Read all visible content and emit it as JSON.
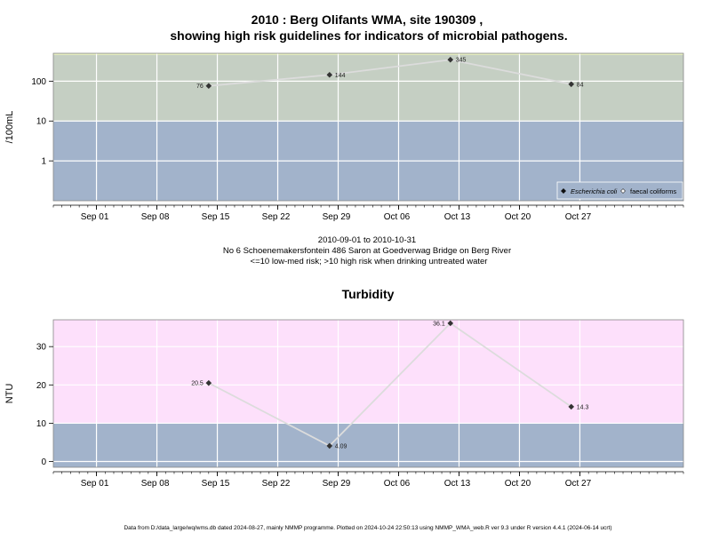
{
  "colors": {
    "high_risk_band": "#c5cfc3",
    "low_risk_band": "#a2b3cb",
    "turbidity_high_band": "#fde0fb",
    "grid": "#ffffff",
    "line": "#dcdcdc",
    "point": "#333333"
  },
  "chart_data": [
    {
      "type": "line",
      "title": [
        "2010 : Berg Olifants WMA, site 190309 ,",
        "showing high risk guidelines for indicators of microbial pathogens."
      ],
      "ylabel": "/100mL",
      "yscale": "log",
      "ylim": [
        0.1,
        500
      ],
      "yticks": [
        1,
        10,
        100
      ],
      "ytick_labels": [
        "1",
        "10",
        "100"
      ],
      "threshold": 10,
      "xlim": [
        "2010-08-27",
        "2010-11-08"
      ],
      "xticks": [
        "2010-09-01",
        "2010-09-08",
        "2010-09-15",
        "2010-09-22",
        "2010-09-29",
        "2010-10-06",
        "2010-10-13",
        "2010-10-20",
        "2010-10-27"
      ],
      "xtick_labels": [
        "Sep 01",
        "Sep 08",
        "Sep 15",
        "Sep 22",
        "Sep 29",
        "Oct 06",
        "Oct 13",
        "Oct 20",
        "Oct 27"
      ],
      "legend_placement": "bottom-right",
      "legend": [
        "Escherichia coli",
        "faecal coliforms"
      ],
      "series": [
        {
          "name": "Escherichia coli",
          "x": [
            "2010-09-14",
            "2010-09-28",
            "2010-10-12",
            "2010-10-26"
          ],
          "y": [
            76,
            144,
            345,
            84
          ],
          "labels": [
            "76",
            "144",
            "345",
            "84"
          ]
        }
      ]
    },
    {
      "type": "line",
      "title": "Turbidity",
      "ylabel": "NTU",
      "ylim": [
        -1.5,
        37
      ],
      "yticks": [
        0,
        10,
        20,
        30
      ],
      "ytick_labels": [
        "0",
        "10",
        "20",
        "30"
      ],
      "threshold": 10,
      "xlim": [
        "2010-08-27",
        "2010-11-08"
      ],
      "xticks": [
        "2010-09-01",
        "2010-09-08",
        "2010-09-15",
        "2010-09-22",
        "2010-09-29",
        "2010-10-06",
        "2010-10-13",
        "2010-10-20",
        "2010-10-27"
      ],
      "xtick_labels": [
        "Sep 01",
        "Sep 08",
        "Sep 15",
        "Sep 22",
        "Sep 29",
        "Oct 06",
        "Oct 13",
        "Oct 20",
        "Oct 27"
      ],
      "series": [
        {
          "x": [
            "2010-09-14",
            "2010-09-28",
            "2010-10-12",
            "2010-10-26"
          ],
          "y": [
            20.5,
            4.09,
            36.1,
            14.3
          ],
          "labels": [
            "20.5",
            "4.09",
            "36.1",
            "14.3"
          ]
        }
      ]
    }
  ],
  "caption": {
    "date_range": "2010-09-01 to 2010-10-31",
    "site": "No 6 Schoenemakersfontein 486 Saron at Goedverwag Bridge on Berg River",
    "risk": "<=10 low-med risk; >10 high risk when drinking untreated water"
  },
  "footer": "Data from D:/data_large/wq/wms.db dated 2024-08-27, mainly NMMP programme. Plotted on 2024-10-24 22:50:13 using NMMP_WMA_web.R ver 9.3 under R version 4.4.1 (2024-06-14 ucrt)"
}
